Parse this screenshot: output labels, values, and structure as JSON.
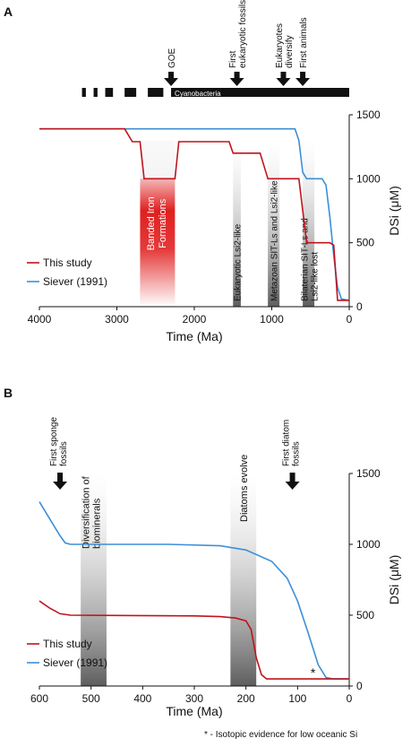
{
  "chart_data": [
    {
      "panel_label": "A",
      "type": "line",
      "xlabel": "Time (Ma)",
      "ylabel": "DSi (μM)",
      "xlim": [
        4000,
        0
      ],
      "ylim": [
        0,
        1500
      ],
      "x_ticks": [
        4000,
        3000,
        2000,
        1000,
        0
      ],
      "y_ticks": [
        0,
        500,
        1000,
        1500
      ],
      "legend_position": "bottom-left",
      "series": [
        {
          "name": "This study",
          "color": "#c0141c",
          "points": [
            [
              4000,
              1390
            ],
            [
              2900,
              1390
            ],
            [
              2800,
              1290
            ],
            [
              2700,
              1290
            ],
            [
              2650,
              1010
            ],
            [
              2650,
              1000
            ],
            [
              2250,
              1000
            ],
            [
              2200,
              1290
            ],
            [
              1550,
              1290
            ],
            [
              1500,
              1200
            ],
            [
              1150,
              1200
            ],
            [
              1050,
              1000
            ],
            [
              650,
              1000
            ],
            [
              550,
              500
            ],
            [
              250,
              500
            ],
            [
              200,
              480
            ],
            [
              150,
              50
            ],
            [
              0,
              50
            ]
          ]
        },
        {
          "name": "Siever (1991)",
          "color": "#3d8fd6",
          "points": [
            [
              4000,
              1390
            ],
            [
              700,
              1390
            ],
            [
              650,
              1300
            ],
            [
              600,
              1050
            ],
            [
              550,
              1000
            ],
            [
              350,
              1000
            ],
            [
              300,
              950
            ],
            [
              250,
              700
            ],
            [
              200,
              400
            ],
            [
              150,
              150
            ],
            [
              100,
              60
            ],
            [
              0,
              50
            ]
          ]
        }
      ],
      "bands": [
        {
          "label": "Banded Iron Formations",
          "x_range": [
            2700,
            2250
          ]
        },
        {
          "label": "Eukaryotic Lsi2-like",
          "x_range": [
            1500,
            1400
          ]
        },
        {
          "label": "Metazoan SIT-Ls and Lsi2-like",
          "x_range": [
            1050,
            900
          ]
        },
        {
          "label": "Bilaterian SIT-Ls and Lsi2-like lost",
          "x_range": [
            600,
            450
          ]
        }
      ],
      "events": [
        {
          "label": "GOE",
          "x": 2300
        },
        {
          "label": "First eukaryotic fossils",
          "x": 1450
        },
        {
          "label": "Eukaryotes diversify",
          "x": 850
        },
        {
          "label": "First animals",
          "x": 600
        }
      ],
      "cyanobacteria_bar": {
        "label": "Cyanobacteria",
        "segments": [
          [
            3450,
            3400
          ],
          [
            3300,
            3250
          ],
          [
            3150,
            3050
          ],
          [
            2900,
            2750
          ],
          [
            2600,
            2400
          ],
          [
            2300,
            0
          ]
        ]
      }
    },
    {
      "panel_label": "B",
      "type": "line",
      "xlabel": "Time (Ma)",
      "ylabel": "DSi (μM)",
      "xlim": [
        600,
        0
      ],
      "ylim": [
        0,
        1500
      ],
      "x_ticks": [
        600,
        500,
        400,
        300,
        200,
        100,
        0
      ],
      "y_ticks": [
        0,
        500,
        1000,
        1500
      ],
      "legend_position": "bottom-left",
      "series": [
        {
          "name": "This study",
          "color": "#c0141c",
          "points": [
            [
              600,
              600
            ],
            [
              580,
              550
            ],
            [
              560,
              510
            ],
            [
              540,
              500
            ],
            [
              300,
              495
            ],
            [
              250,
              490
            ],
            [
              220,
              480
            ],
            [
              200,
              460
            ],
            [
              190,
              400
            ],
            [
              180,
              200
            ],
            [
              170,
              80
            ],
            [
              160,
              50
            ],
            [
              0,
              50
            ]
          ]
        },
        {
          "name": "Siever (1991)",
          "color": "#3d8fd6",
          "points": [
            [
              600,
              1300
            ],
            [
              580,
              1180
            ],
            [
              560,
              1060
            ],
            [
              550,
              1010
            ],
            [
              540,
              1000
            ],
            [
              350,
              1000
            ],
            [
              250,
              990
            ],
            [
              200,
              960
            ],
            [
              150,
              880
            ],
            [
              120,
              760
            ],
            [
              100,
              600
            ],
            [
              80,
              380
            ],
            [
              60,
              150
            ],
            [
              45,
              60
            ],
            [
              30,
              50
            ],
            [
              0,
              50
            ]
          ]
        }
      ],
      "bands": [
        {
          "label": "Diversification of biominerals",
          "x_range": [
            520,
            470
          ]
        },
        {
          "label": "Diatoms evolve",
          "x_range": [
            230,
            180
          ]
        }
      ],
      "events": [
        {
          "label": "First sponge fossils",
          "x": 560
        },
        {
          "label": "First diatom fossils",
          "x": 110
        }
      ],
      "asterisk": {
        "symbol": "*",
        "x": 70,
        "y": 90
      },
      "footnote": "* - Isotopic evidence for low oceanic Si"
    }
  ]
}
